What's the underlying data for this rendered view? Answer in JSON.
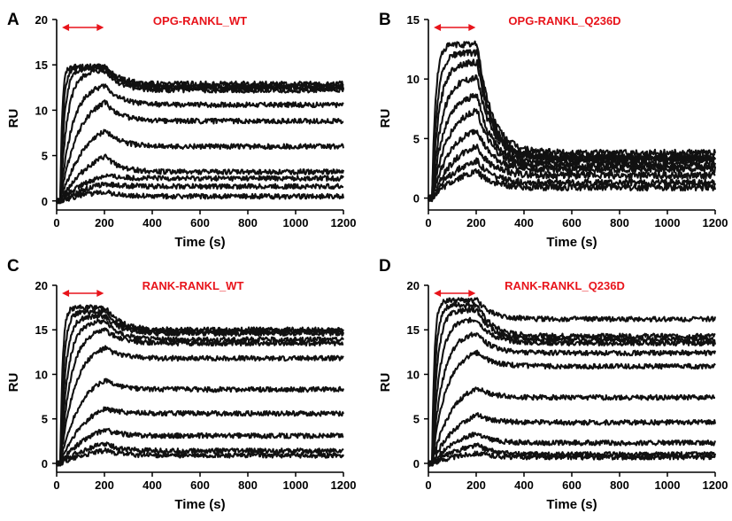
{
  "colors": {
    "trace": "#111111",
    "annotation": "#e8141b",
    "axis": "#000000"
  },
  "chart_data": [
    {
      "panel": "A",
      "title": "OPG-RANKL_WT",
      "type": "line",
      "xlabel": "Time (s)",
      "ylabel": "RU",
      "xlim": [
        0,
        1200
      ],
      "ylim": [
        -1,
        20
      ],
      "xticks": [
        0,
        200,
        400,
        600,
        800,
        1000,
        1200
      ],
      "yticks": [
        0,
        5,
        10,
        15,
        20
      ],
      "injection_window": [
        15,
        205
      ],
      "series": [
        {
          "plateau": 14.8,
          "tau": 8,
          "dissociation_end": 12.6
        },
        {
          "plateau": 14.7,
          "tau": 12,
          "dissociation_end": 12.9
        },
        {
          "plateau": 14.6,
          "tau": 18,
          "dissociation_end": 12.5
        },
        {
          "plateau": 14.3,
          "tau": 30,
          "dissociation_end": 12.2
        },
        {
          "plateau": 13.0,
          "tau": 50,
          "dissociation_end": 10.6
        },
        {
          "plateau": 11.8,
          "tau": 75,
          "dissociation_end": 8.8
        },
        {
          "plateau": 9.5,
          "tau": 110,
          "dissociation_end": 6.0
        },
        {
          "plateau": 6.6,
          "tau": 140,
          "dissociation_end": 3.2
        },
        {
          "plateau": 4.2,
          "tau": 170,
          "dissociation_end": 2.5
        },
        {
          "plateau": 3.0,
          "tau": 190,
          "dissociation_end": 1.6
        },
        {
          "plateau": 1.8,
          "tau": 220,
          "dissociation_end": 0.5
        }
      ]
    },
    {
      "panel": "B",
      "title": "OPG-RANKL_Q236D",
      "type": "line",
      "xlabel": "Time (s)",
      "ylabel": "RU",
      "xlim": [
        0,
        1200
      ],
      "ylim": [
        -1,
        15
      ],
      "xticks": [
        0,
        200,
        400,
        600,
        800,
        1000,
        1200
      ],
      "yticks": [
        0,
        5,
        10,
        15
      ],
      "injection_window": [
        15,
        205
      ],
      "series": [
        {
          "plateau": 12.9,
          "tau": 15,
          "dissociation_end": 3.8
        },
        {
          "plateau": 12.2,
          "tau": 22,
          "dissociation_end": 3.4
        },
        {
          "plateau": 11.4,
          "tau": 30,
          "dissociation_end": 3.4
        },
        {
          "plateau": 10.2,
          "tau": 40,
          "dissociation_end": 3.3
        },
        {
          "plateau": 8.8,
          "tau": 50,
          "dissociation_end": 3.0
        },
        {
          "plateau": 7.8,
          "tau": 65,
          "dissociation_end": 2.7
        },
        {
          "plateau": 6.3,
          "tau": 80,
          "dissociation_end": 2.4
        },
        {
          "plateau": 5.0,
          "tau": 95,
          "dissociation_end": 1.9
        },
        {
          "plateau": 3.8,
          "tau": 110,
          "dissociation_end": 1.3
        },
        {
          "plateau": 2.9,
          "tau": 130,
          "dissociation_end": 0.9
        }
      ]
    },
    {
      "panel": "C",
      "title": "RANK-RANKL_WT",
      "type": "line",
      "xlabel": "Time (s)",
      "ylabel": "RU",
      "xlim": [
        0,
        1200
      ],
      "ylim": [
        -1,
        20
      ],
      "xticks": [
        0,
        200,
        400,
        600,
        800,
        1000,
        1200
      ],
      "yticks": [
        0,
        5,
        10,
        15,
        20
      ],
      "injection_window": [
        15,
        205
      ],
      "series": [
        {
          "plateau": 17.5,
          "tau": 10,
          "dissociation_end": 15.0
        },
        {
          "plateau": 17.0,
          "tau": 15,
          "dissociation_end": 14.8
        },
        {
          "plateau": 16.5,
          "tau": 22,
          "dissociation_end": 14.6
        },
        {
          "plateau": 16.0,
          "tau": 32,
          "dissociation_end": 13.9
        },
        {
          "plateau": 15.2,
          "tau": 45,
          "dissociation_end": 13.5
        },
        {
          "plateau": 13.5,
          "tau": 60,
          "dissociation_end": 11.8
        },
        {
          "plateau": 10.5,
          "tau": 85,
          "dissociation_end": 8.3
        },
        {
          "plateau": 7.5,
          "tau": 110,
          "dissociation_end": 5.6
        },
        {
          "plateau": 5.0,
          "tau": 135,
          "dissociation_end": 3.1
        },
        {
          "plateau": 3.2,
          "tau": 160,
          "dissociation_end": 1.4
        },
        {
          "plateau": 2.3,
          "tau": 185,
          "dissociation_end": 0.9
        }
      ]
    },
    {
      "panel": "D",
      "title": "RANK-RANKL_Q236D",
      "type": "line",
      "xlabel": "Time (s)",
      "ylabel": "RU",
      "xlim": [
        0,
        1200
      ],
      "ylim": [
        -1,
        20
      ],
      "xticks": [
        0,
        200,
        400,
        600,
        800,
        1000,
        1200
      ],
      "yticks": [
        0,
        5,
        10,
        15,
        20
      ],
      "injection_window": [
        15,
        205
      ],
      "series": [
        {
          "plateau": 18.3,
          "tau": 10,
          "dissociation_end": 16.2
        },
        {
          "plateau": 17.8,
          "tau": 15,
          "dissociation_end": 14.3
        },
        {
          "plateau": 17.2,
          "tau": 22,
          "dissociation_end": 13.9
        },
        {
          "plateau": 16.2,
          "tau": 32,
          "dissociation_end": 13.5
        },
        {
          "plateau": 14.8,
          "tau": 45,
          "dissociation_end": 12.4
        },
        {
          "plateau": 13.0,
          "tau": 60,
          "dissociation_end": 10.9
        },
        {
          "plateau": 9.5,
          "tau": 85,
          "dissociation_end": 7.4
        },
        {
          "plateau": 6.6,
          "tau": 110,
          "dissociation_end": 4.6
        },
        {
          "plateau": 4.5,
          "tau": 135,
          "dissociation_end": 2.3
        },
        {
          "plateau": 3.0,
          "tau": 160,
          "dissociation_end": 1.0
        },
        {
          "plateau": 1.8,
          "tau": 185,
          "dissociation_end": 0.7
        }
      ]
    }
  ]
}
